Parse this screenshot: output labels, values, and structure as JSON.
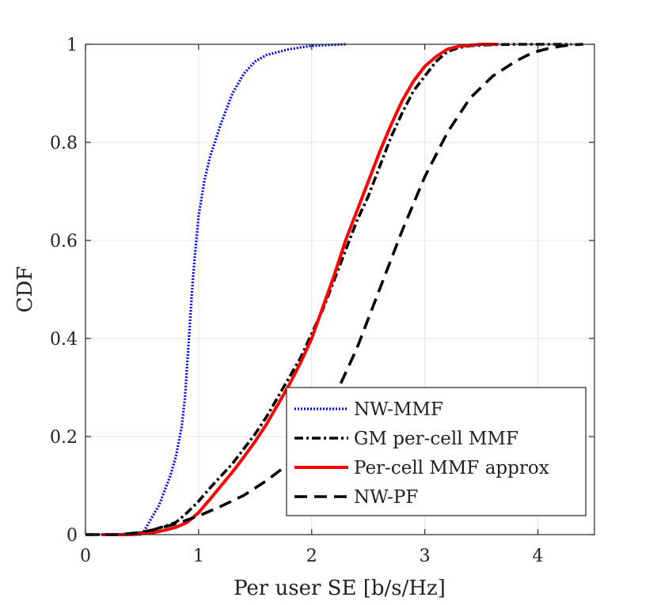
{
  "chart_data": {
    "type": "line",
    "title": "",
    "xlabel": "Per user SE [b/s/Hz]",
    "ylabel": "CDF",
    "xlim": [
      0,
      4.5
    ],
    "ylim": [
      0,
      1
    ],
    "xticks": [
      0,
      1,
      2,
      3,
      4
    ],
    "xtick_labels": [
      "0",
      "1",
      "2",
      "3",
      "4"
    ],
    "yticks": [
      0,
      0.2,
      0.4,
      0.6,
      0.8,
      1
    ],
    "ytick_labels": [
      "0",
      "0.2",
      "0.4",
      "0.6",
      "0.8",
      "1"
    ],
    "grid": true,
    "legend_position": "bottom-right",
    "series": [
      {
        "name": "NW-MMF",
        "color": "#0000ff",
        "style": "dotted",
        "x": [
          0.0,
          0.5,
          0.55,
          0.6,
          0.65,
          0.7,
          0.75,
          0.8,
          0.85,
          0.88,
          0.9,
          0.92,
          0.94,
          0.96,
          0.98,
          1.0,
          1.05,
          1.1,
          1.2,
          1.3,
          1.4,
          1.5,
          1.6,
          1.8,
          2.0,
          2.3
        ],
        "y": [
          0.0,
          0.0,
          0.02,
          0.04,
          0.06,
          0.09,
          0.12,
          0.16,
          0.22,
          0.28,
          0.35,
          0.42,
          0.49,
          0.55,
          0.6,
          0.65,
          0.72,
          0.77,
          0.84,
          0.9,
          0.94,
          0.965,
          0.978,
          0.99,
          0.997,
          1.0
        ]
      },
      {
        "name": "GM per-cell MMF",
        "color": "#000000",
        "style": "dashdot",
        "x": [
          0.0,
          0.3,
          0.5,
          0.6,
          0.7,
          0.8,
          0.9,
          1.0,
          1.1,
          1.2,
          1.3,
          1.4,
          1.5,
          1.6,
          1.7,
          1.8,
          1.9,
          2.0,
          2.1,
          2.2,
          2.3,
          2.4,
          2.5,
          2.6,
          2.7,
          2.8,
          2.9,
          3.0,
          3.1,
          3.2,
          3.3,
          3.4,
          3.6,
          3.8,
          4.0,
          4.3
        ],
        "y": [
          0.0,
          0.0,
          0.004,
          0.01,
          0.017,
          0.025,
          0.045,
          0.068,
          0.095,
          0.12,
          0.145,
          0.175,
          0.205,
          0.24,
          0.28,
          0.32,
          0.36,
          0.41,
          0.46,
          0.52,
          0.58,
          0.64,
          0.69,
          0.75,
          0.81,
          0.86,
          0.905,
          0.935,
          0.965,
          0.985,
          0.993,
          0.997,
          0.999,
          1.0,
          1.0,
          1.0
        ]
      },
      {
        "name": "Per-cell MMF approx",
        "color": "#ff0000",
        "style": "solid",
        "x": [
          0.15,
          0.4,
          0.6,
          0.7,
          0.8,
          0.9,
          1.0,
          1.1,
          1.2,
          1.3,
          1.4,
          1.5,
          1.6,
          1.7,
          1.8,
          1.9,
          2.0,
          2.1,
          2.2,
          2.3,
          2.4,
          2.5,
          2.6,
          2.7,
          2.8,
          2.9,
          3.0,
          3.1,
          3.2,
          3.3,
          3.4,
          3.5,
          3.65
        ],
        "y": [
          0.0,
          0.0,
          0.004,
          0.009,
          0.015,
          0.025,
          0.045,
          0.072,
          0.1,
          0.128,
          0.158,
          0.19,
          0.225,
          0.265,
          0.305,
          0.35,
          0.4,
          0.465,
          0.53,
          0.6,
          0.66,
          0.72,
          0.78,
          0.835,
          0.885,
          0.925,
          0.955,
          0.975,
          0.99,
          0.996,
          0.998,
          1.0,
          1.0
        ]
      },
      {
        "name": "NW-PF",
        "color": "#000000",
        "style": "dashed",
        "x": [
          0.0,
          0.3,
          0.5,
          0.6,
          0.8,
          1.0,
          1.2,
          1.4,
          1.6,
          1.8,
          2.0,
          2.2,
          2.4,
          2.6,
          2.8,
          3.0,
          3.2,
          3.4,
          3.6,
          3.8,
          3.9,
          4.0,
          4.1,
          4.2,
          4.3,
          4.4
        ],
        "y": [
          0.0,
          0.0,
          0.005,
          0.01,
          0.022,
          0.038,
          0.058,
          0.08,
          0.11,
          0.145,
          0.2,
          0.28,
          0.38,
          0.5,
          0.62,
          0.73,
          0.82,
          0.89,
          0.935,
          0.965,
          0.977,
          0.986,
          0.992,
          0.996,
          0.999,
          1.0
        ]
      }
    ]
  }
}
